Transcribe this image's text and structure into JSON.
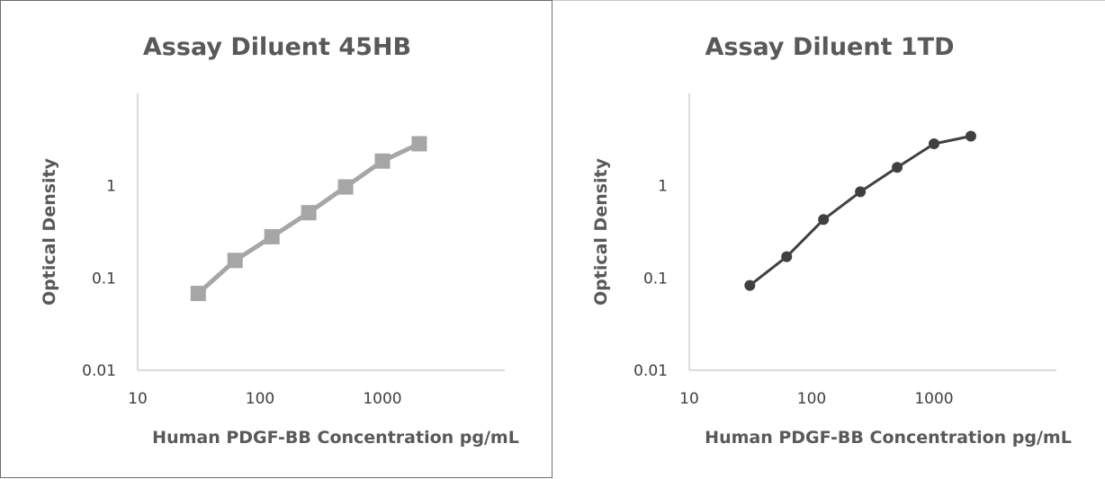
{
  "colors": {
    "series_0": "#a6a6a6",
    "series_1": "#404040",
    "axis": "#d0d0d0",
    "text": "#595959"
  },
  "chart_data": [
    {
      "type": "line",
      "title": "Assay Diluent 45HB",
      "xlabel": "Human PDGF-BB  Concentration pg/mL",
      "ylabel": "Optical Density",
      "x_scale": "log",
      "y_scale": "log",
      "xlim": [
        10,
        10000
      ],
      "ylim": [
        0.01,
        10
      ],
      "x_ticks": [
        "10",
        "100",
        "1000"
      ],
      "y_ticks": [
        "0.01",
        "0.1",
        "1"
      ],
      "grid": false,
      "marker": "square",
      "series": [
        {
          "x": [
            31.25,
            62.5,
            125,
            250,
            500,
            1000,
            2000
          ],
          "y": [
            0.068,
            0.155,
            0.28,
            0.51,
            0.97,
            1.85,
            2.85
          ]
        }
      ]
    },
    {
      "type": "line",
      "title": "Assay Diluent 1TD",
      "xlabel": "Human PDGF-BB  Concentration pg/mL",
      "ylabel": "Optical Density",
      "x_scale": "log",
      "y_scale": "log",
      "xlim": [
        10,
        10000
      ],
      "ylim": [
        0.01,
        10
      ],
      "x_ticks": [
        "10",
        "100",
        "1000"
      ],
      "y_ticks": [
        "0.01",
        "0.1",
        "1"
      ],
      "grid": false,
      "marker": "circle",
      "series": [
        {
          "x": [
            31.25,
            62.5,
            125,
            250,
            500,
            1000,
            2000
          ],
          "y": [
            0.083,
            0.17,
            0.43,
            0.86,
            1.58,
            2.85,
            3.45
          ]
        }
      ]
    }
  ]
}
